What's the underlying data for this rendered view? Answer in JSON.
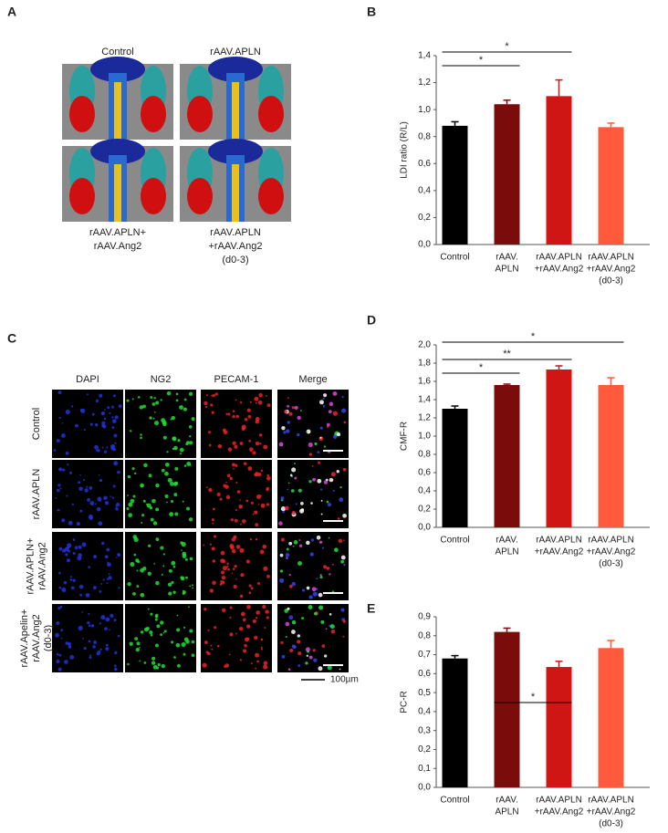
{
  "panel_a": {
    "label": "A",
    "columns": [
      "Control",
      "rAAV.APLN"
    ],
    "captions": [
      [
        "rAAV.APLN+",
        "rAAV.Ang2"
      ],
      [
        "rAAV.APLN",
        "+rAAV.Ang2",
        "(d0-3)"
      ]
    ]
  },
  "panel_c": {
    "label": "C",
    "columns": [
      "DAPI",
      "NG2",
      "PECAM-1",
      "Merge"
    ],
    "rows": [
      [
        "Control"
      ],
      [
        "rAAV.APLN"
      ],
      [
        "rAAV.APLN+",
        "rAAV.Ang2"
      ],
      [
        "rAAV.Apelin+",
        "rAAV.Ang2",
        "(d0-3)"
      ]
    ],
    "scale_bar": "100µm"
  },
  "chart_data": [
    {
      "type": "bar",
      "panel": "B",
      "ylabel": "LDI ratio (R/L)",
      "categories": [
        [
          "Control"
        ],
        [
          "rAAV.",
          "APLN"
        ],
        [
          "rAAV.APLN",
          "+rAAV.Ang2"
        ],
        [
          "rAAV.APLN",
          "+rAAV.Ang2",
          "(d0-3)"
        ]
      ],
      "values": [
        0.88,
        1.04,
        1.1,
        0.87
      ],
      "errors": [
        0.03,
        0.03,
        0.12,
        0.03
      ],
      "colors": [
        "#000000",
        "#7a0c0c",
        "#d01515",
        "#ff5a3c"
      ],
      "ylim": [
        0,
        1.4
      ],
      "yticks": [
        {
          "value": 0,
          "label": "0,0"
        },
        {
          "value": 0.2,
          "label": "0,2"
        },
        {
          "value": 0.4,
          "label": "0,4"
        },
        {
          "value": 0.6,
          "label": "0,6"
        },
        {
          "value": 0.8,
          "label": "0,8"
        },
        {
          "value": 1.0,
          "label": "1,0"
        },
        {
          "value": 1.2,
          "label": "1,2"
        },
        {
          "value": 1.4,
          "label": "1,4"
        }
      ],
      "significance": [
        {
          "from": 0,
          "to": 1,
          "label": "*"
        },
        {
          "from": 0,
          "to": 2,
          "label": "*"
        }
      ]
    },
    {
      "type": "bar",
      "panel": "D",
      "ylabel": "CMF-R",
      "categories": [
        [
          "Control"
        ],
        [
          "rAAV.",
          "APLN"
        ],
        [
          "rAAV.APLN",
          "+rAAV.Ang2"
        ],
        [
          "rAAV.APLN",
          "+rAAV.Ang2",
          "(d0-3)"
        ]
      ],
      "values": [
        1.3,
        1.56,
        1.73,
        1.56
      ],
      "errors": [
        0.03,
        0.01,
        0.04,
        0.08
      ],
      "colors": [
        "#000000",
        "#7a0c0c",
        "#d01515",
        "#ff5a3c"
      ],
      "ylim": [
        0,
        2.0
      ],
      "yticks": [
        {
          "value": 0,
          "label": "0,0"
        },
        {
          "value": 0.2,
          "label": "0,2"
        },
        {
          "value": 0.4,
          "label": "0,4"
        },
        {
          "value": 0.6,
          "label": "0,6"
        },
        {
          "value": 0.8,
          "label": "0,8"
        },
        {
          "value": 1.0,
          "label": "1,0"
        },
        {
          "value": 1.2,
          "label": "1,2"
        },
        {
          "value": 1.4,
          "label": "1,4"
        },
        {
          "value": 1.6,
          "label": "1,6"
        },
        {
          "value": 1.8,
          "label": "1,8"
        },
        {
          "value": 2.0,
          "label": "2,0"
        }
      ],
      "significance": [
        {
          "from": 0,
          "to": 1,
          "label": "*"
        },
        {
          "from": 0,
          "to": 2,
          "label": "**"
        },
        {
          "from": 0,
          "to": 3,
          "label": "*"
        }
      ]
    },
    {
      "type": "bar",
      "panel": "E",
      "ylabel": "PC-R",
      "categories": [
        [
          "Control"
        ],
        [
          "rAAV.",
          "APLN"
        ],
        [
          "rAAV.APLN",
          "+rAAV.Ang2"
        ],
        [
          "rAAV.APLN",
          "+rAAV.Ang2",
          "(d0-3)"
        ]
      ],
      "values": [
        0.68,
        0.82,
        0.635,
        0.735
      ],
      "errors": [
        0.015,
        0.02,
        0.03,
        0.04
      ],
      "colors": [
        "#000000",
        "#7a0c0c",
        "#d01515",
        "#ff5a3c"
      ],
      "ylim": [
        0,
        0.9
      ],
      "yticks": [
        {
          "value": 0,
          "label": "0,0"
        },
        {
          "value": 0.1,
          "label": "0,1"
        },
        {
          "value": 0.2,
          "label": "0,2"
        },
        {
          "value": 0.3,
          "label": "0,3"
        },
        {
          "value": 0.4,
          "label": "0,4"
        },
        {
          "value": 0.5,
          "label": "0,5"
        },
        {
          "value": 0.6,
          "label": "0,6"
        },
        {
          "value": 0.7,
          "label": "0,7"
        },
        {
          "value": 0.8,
          "label": "0,8"
        },
        {
          "value": 0.9,
          "label": "0,9"
        }
      ],
      "significance": [
        {
          "from": 1,
          "to": 2,
          "label": "*"
        }
      ]
    }
  ]
}
